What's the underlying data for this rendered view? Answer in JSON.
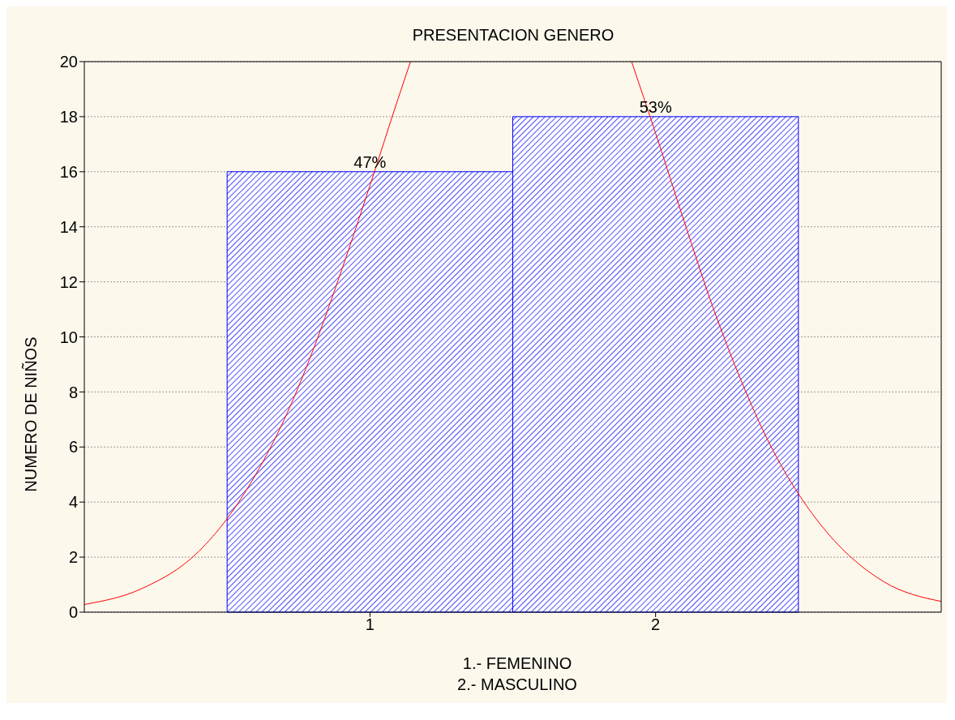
{
  "chart_data": {
    "type": "histogram",
    "title": "PRESENTACION GENERO",
    "xlabel": "1.- FEMENINO\n2.- MASCULINO",
    "ylabel": "NUMERO DE NIÑOS",
    "bins": [
      0.5,
      1.5,
      2.5
    ],
    "values": [
      16,
      18
    ],
    "color": "#0000ff",
    "annotations": [
      {
        "text": "47%",
        "x": 1,
        "y": 16
      },
      {
        "text": "53%",
        "x": 2,
        "y": 18
      }
    ],
    "xlim": [
      0,
      3
    ],
    "xticks": [
      1,
      2
    ],
    "ylim": [
      0,
      20
    ],
    "yticks": [
      0,
      2,
      4,
      6,
      8,
      10,
      12,
      14,
      16,
      18,
      20
    ],
    "grid": "y",
    "marker": "none",
    "series": [
      {
        "type": "line",
        "color": "#ff0000",
        "x": [
          0,
          0.2,
          0.4,
          0.5,
          0.6,
          0.7,
          0.8,
          0.9,
          1.0,
          1.1,
          1.142,
          1.5,
          1.916,
          2.0,
          2.1,
          2.2,
          2.3,
          2.4,
          2.5,
          2.6,
          2.8,
          3.0
        ],
        "values": [
          0.28,
          0.85,
          2.2,
          3.4,
          5.0,
          7.0,
          9.5,
          12.4,
          15.5,
          18.7,
          20,
          null,
          20,
          17.4,
          14.2,
          11.1,
          8.4,
          6.1,
          4.3,
          2.9,
          1.1,
          0.39
        ]
      }
    ]
  }
}
